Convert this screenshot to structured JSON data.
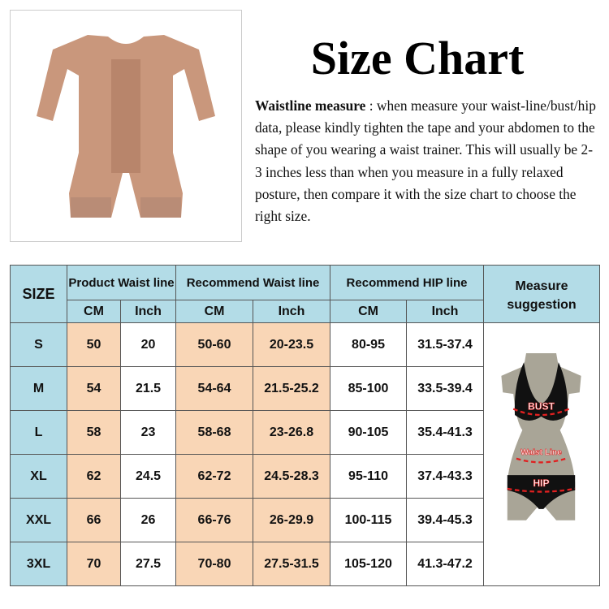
{
  "title": "Size Chart",
  "description": {
    "label": "Waistline measure",
    "text": " : when measure your waist-line/bust/hip data, please kindly tighten the tape and your abdomen to the shape of you wearing a waist trainer. This will usually be 2-3 inches less than when you measure in a fully relaxed posture, then compare it with the size chart to choose the right size."
  },
  "table": {
    "size_header": "SIZE",
    "groups": [
      "Product Waist line",
      "Recommend Waist line",
      "Recommend HIP line"
    ],
    "units": [
      "CM",
      "Inch",
      "CM",
      "Inch",
      "CM",
      "Inch"
    ],
    "measure_header": "Measure suggestion",
    "rows": [
      {
        "size": "S",
        "cells": [
          "50",
          "20",
          "50-60",
          "20-23.5",
          "80-95",
          "31.5-37.4"
        ]
      },
      {
        "size": "M",
        "cells": [
          "54",
          "21.5",
          "54-64",
          "21.5-25.2",
          "85-100",
          "33.5-39.4"
        ]
      },
      {
        "size": "L",
        "cells": [
          "58",
          "23",
          "58-68",
          "23-26.8",
          "90-105",
          "35.4-41.3"
        ]
      },
      {
        "size": "XL",
        "cells": [
          "62",
          "24.5",
          "62-72",
          "24.5-28.3",
          "95-110",
          "37.4-43.3"
        ]
      },
      {
        "size": "XXL",
        "cells": [
          "66",
          "26",
          "66-76",
          "26-29.9",
          "100-115",
          "39.4-45.3"
        ]
      },
      {
        "size": "3XL",
        "cells": [
          "70",
          "27.5",
          "70-80",
          "27.5-31.5",
          "105-120",
          "41.3-47.2"
        ]
      }
    ]
  },
  "figure_labels": {
    "bust": "BUST",
    "waist": "Waist Line",
    "hip": "HIP"
  },
  "colors": {
    "header": "#b3dce7",
    "highlight": "#f9d6b6",
    "garment": "#c9977c",
    "mannequin": "#a9a597",
    "measure_line": "#e02020"
  }
}
